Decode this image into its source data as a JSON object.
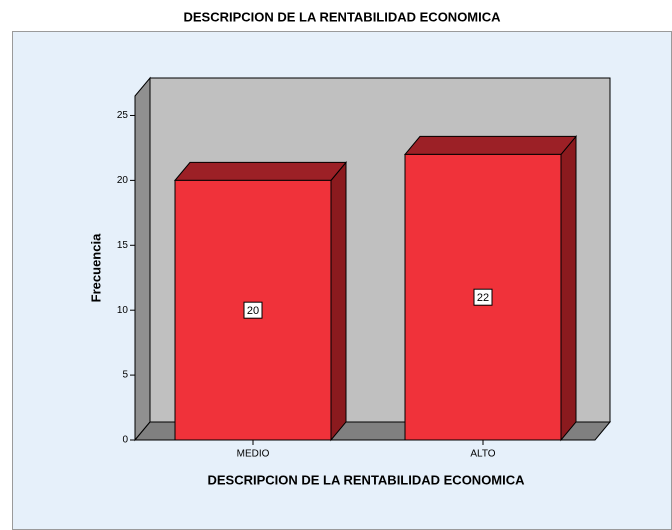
{
  "chart_data": {
    "type": "bar3d",
    "title": "DESCRIPCION DE LA RENTABILIDAD ECONOMICA",
    "x_label": "DESCRIPCION DE LA RENTABILIDAD ECONOMICA",
    "y_label": "Frecuencia",
    "categories": [
      "MEDIO",
      "ALTO"
    ],
    "values": [
      20,
      22
    ],
    "color": "#f0323a",
    "ylim": [
      0,
      26.5
    ],
    "yticks": [
      0,
      5,
      10,
      15,
      20,
      25
    ]
  }
}
